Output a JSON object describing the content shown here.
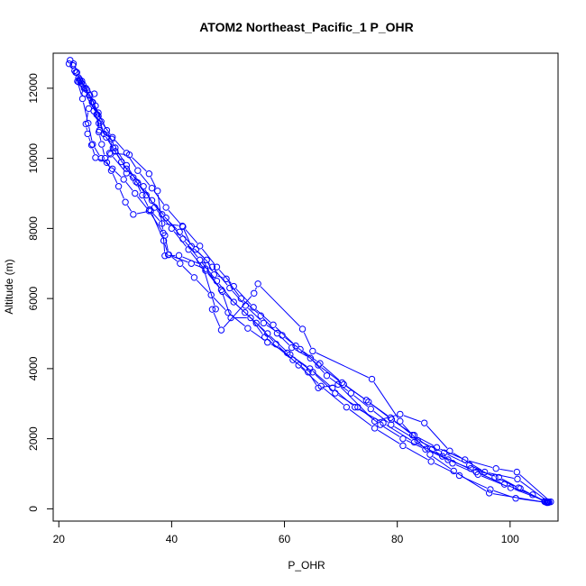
{
  "chart_data": {
    "type": "scatter",
    "title": "ATOM2 Northeast_Pacific_1 P_OHR",
    "xlabel": "P_OHR",
    "ylabel": "Altitude (m)",
    "xlim": [
      19,
      108.5
    ],
    "ylim": [
      -350,
      13000
    ],
    "xticks": [
      20,
      40,
      60,
      80,
      100
    ],
    "yticks": [
      0,
      2000,
      4000,
      6000,
      8000,
      10000,
      12000
    ],
    "grid": false,
    "legend": "none",
    "colors": {
      "series": "#0000ff",
      "frame": "#000000"
    },
    "series": [
      {
        "points": [
          [
            106.8,
            180
          ],
          [
            106.2,
            200
          ],
          [
            101.5,
            600
          ],
          [
            98,
            900
          ],
          [
            93,
            1150
          ],
          [
            89,
            1400
          ],
          [
            85,
            1700
          ],
          [
            81,
            2000
          ],
          [
            77,
            2400
          ],
          [
            73,
            2900
          ],
          [
            69,
            3300
          ],
          [
            65,
            3900
          ],
          [
            61,
            4400
          ],
          [
            57,
            5000
          ],
          [
            53,
            5600
          ],
          [
            49,
            6200
          ],
          [
            46,
            6800
          ],
          [
            43,
            7400
          ],
          [
            40,
            8000
          ],
          [
            37,
            8600
          ],
          [
            35,
            9200
          ],
          [
            32,
            9700
          ],
          [
            30,
            10200
          ],
          [
            28,
            10700
          ],
          [
            27,
            11200
          ],
          [
            26,
            11600
          ],
          [
            24.5,
            12000
          ],
          [
            23.5,
            12300
          ],
          [
            23,
            12450
          ],
          [
            22.5,
            12650
          ],
          [
            22,
            12800
          ]
        ]
      },
      {
        "points": [
          [
            21.8,
            12700
          ],
          [
            22.8,
            12500
          ],
          [
            24,
            12150
          ],
          [
            25.5,
            11800
          ],
          [
            27,
            11300
          ],
          [
            28.5,
            10800
          ],
          [
            30,
            10300
          ],
          [
            32,
            9800
          ],
          [
            34,
            9300
          ],
          [
            36.5,
            8800
          ],
          [
            39,
            8300
          ],
          [
            42,
            7700
          ],
          [
            45,
            7100
          ],
          [
            48,
            6500
          ],
          [
            51,
            5900
          ],
          [
            55,
            5300
          ],
          [
            58.5,
            4700
          ],
          [
            62.5,
            4100
          ],
          [
            66.5,
            3500
          ],
          [
            71,
            2900
          ],
          [
            76,
            2300
          ],
          [
            81,
            1800
          ],
          [
            86,
            1350
          ],
          [
            91,
            950
          ],
          [
            96.5,
            550
          ],
          [
            101,
            300
          ],
          [
            106.5,
            180
          ]
        ]
      },
      {
        "points": [
          [
            107.2,
            200
          ],
          [
            101.2,
            1050
          ],
          [
            97.5,
            1150
          ],
          [
            92,
            1400
          ],
          [
            87,
            1750
          ],
          [
            83,
            2100
          ],
          [
            79,
            2550
          ],
          [
            74.5,
            3100
          ],
          [
            70.5,
            3550
          ],
          [
            66,
            4100
          ],
          [
            62,
            4650
          ],
          [
            58,
            5250
          ],
          [
            54.5,
            5750
          ],
          [
            51,
            6350
          ],
          [
            48,
            6900
          ],
          [
            45,
            7500
          ],
          [
            42,
            8050
          ],
          [
            39,
            8600
          ],
          [
            36.5,
            9150
          ],
          [
            34,
            9650
          ],
          [
            32,
            10150
          ],
          [
            29.5,
            10600
          ],
          [
            27.5,
            11050
          ],
          [
            26.5,
            11500
          ],
          [
            25,
            11950
          ],
          [
            23.7,
            12250
          ]
        ]
      },
      {
        "points": [
          [
            23.3,
            12200
          ],
          [
            24.2,
            11700
          ],
          [
            25.2,
            11000
          ],
          [
            26,
            10400
          ],
          [
            27.5,
            10000
          ],
          [
            29.5,
            9700
          ],
          [
            31.5,
            9400
          ],
          [
            33.5,
            9000
          ],
          [
            36,
            8500
          ],
          [
            38.8,
            7800
          ],
          [
            39.5,
            7250
          ],
          [
            41.5,
            7000
          ],
          [
            44,
            6600
          ],
          [
            47,
            6100
          ],
          [
            50,
            5600
          ],
          [
            53.5,
            5150
          ],
          [
            57,
            4750
          ],
          [
            60.5,
            4450
          ],
          [
            64.5,
            4000
          ],
          [
            68.5,
            3450
          ],
          [
            72.5,
            2900
          ],
          [
            77.5,
            2450
          ],
          [
            83,
            1900
          ],
          [
            88,
            1500
          ],
          [
            94,
            1050
          ],
          [
            99,
            700
          ],
          [
            104,
            400
          ],
          [
            106.4,
            190
          ]
        ]
      },
      {
        "points": [
          [
            106.6,
            175
          ],
          [
            96.3,
            450
          ],
          [
            90,
            1080
          ],
          [
            85.8,
            1550
          ],
          [
            80.5,
            2500
          ],
          [
            75.5,
            3700
          ],
          [
            65,
            4500
          ],
          [
            63.2,
            5130
          ],
          [
            55.3,
            6420
          ],
          [
            54.6,
            6150
          ],
          [
            48.8,
            5100
          ],
          [
            47.2,
            5690
          ],
          [
            47.8,
            5700
          ],
          [
            45.5,
            6950
          ],
          [
            41.3,
            7230
          ],
          [
            38.8,
            7220
          ],
          [
            38.5,
            7870
          ],
          [
            37.5,
            9070
          ],
          [
            36,
            9560
          ],
          [
            32.5,
            10100
          ],
          [
            29,
            10150
          ],
          [
            28.5,
            9880
          ],
          [
            26.5,
            10020
          ],
          [
            25.8,
            10380
          ],
          [
            25.1,
            10700
          ],
          [
            24.8,
            10980
          ],
          [
            25.3,
            11420
          ],
          [
            26.3,
            11840
          ],
          [
            24.8,
            12000
          ]
        ]
      },
      {
        "points": [
          [
            106.9,
            190
          ],
          [
            101.3,
            850
          ],
          [
            95.5,
            1050
          ],
          [
            89.3,
            1650
          ],
          [
            84.8,
            2450
          ],
          [
            80.5,
            2700
          ],
          [
            76,
            2500
          ],
          [
            69.5,
            3550
          ],
          [
            66,
            3450
          ],
          [
            64.2,
            3900
          ],
          [
            61.5,
            4250
          ],
          [
            56.5,
            4900
          ],
          [
            54,
            5450
          ],
          [
            50.5,
            5450
          ],
          [
            48.8,
            6250
          ],
          [
            46,
            6850
          ],
          [
            43.5,
            7000
          ],
          [
            39.4,
            7250
          ],
          [
            38.6,
            7650
          ],
          [
            36.3,
            8500
          ],
          [
            33.2,
            8400
          ],
          [
            31.8,
            8750
          ],
          [
            30.6,
            9200
          ],
          [
            29.3,
            9650
          ],
          [
            28.2,
            10000
          ],
          [
            27.6,
            10400
          ],
          [
            27.1,
            10750
          ],
          [
            26.7,
            11250
          ],
          [
            25.9,
            11600
          ],
          [
            24.3,
            12100
          ],
          [
            23.8,
            12200
          ]
        ]
      },
      {
        "points": [
          [
            23.5,
            12180
          ],
          [
            24.6,
            11850
          ],
          [
            26.8,
            11250
          ],
          [
            27.2,
            10800
          ],
          [
            29.4,
            10550
          ],
          [
            29.2,
            10120
          ],
          [
            32,
            9580
          ],
          [
            33.7,
            9330
          ],
          [
            34.8,
            8950
          ],
          [
            36.1,
            8540
          ],
          [
            38.3,
            8140
          ],
          [
            41.9,
            8070
          ],
          [
            43.5,
            7490
          ],
          [
            46.2,
            7100
          ],
          [
            47.5,
            6680
          ],
          [
            49.7,
            6560
          ],
          [
            52.3,
            6000
          ],
          [
            55.8,
            5510
          ],
          [
            58.7,
            5010
          ],
          [
            61.3,
            4600
          ],
          [
            64.6,
            4300
          ],
          [
            67.5,
            3800
          ],
          [
            71.8,
            3300
          ],
          [
            75.3,
            2850
          ],
          [
            78.9,
            2400
          ],
          [
            83.6,
            1950
          ],
          [
            88.3,
            1600
          ],
          [
            92.8,
            1250
          ],
          [
            97.3,
            900
          ],
          [
            101.8,
            580
          ],
          [
            106.1,
            210
          ]
        ]
      },
      {
        "points": [
          [
            106.7,
            200
          ],
          [
            100.1,
            600
          ],
          [
            94.3,
            980
          ],
          [
            89.8,
            1300
          ],
          [
            86.2,
            1700
          ],
          [
            82.7,
            2100
          ],
          [
            78.8,
            2600
          ],
          [
            74.9,
            3050
          ],
          [
            70.2,
            3600
          ],
          [
            66.3,
            4150
          ],
          [
            62.8,
            4550
          ],
          [
            59.6,
            4950
          ],
          [
            56.3,
            5300
          ],
          [
            53.1,
            5800
          ],
          [
            50.3,
            6300
          ],
          [
            47.2,
            6900
          ],
          [
            44.3,
            7400
          ],
          [
            41.4,
            7900
          ],
          [
            38.3,
            8400
          ],
          [
            35.5,
            8950
          ],
          [
            33.2,
            9450
          ],
          [
            31.1,
            9900
          ],
          [
            29.6,
            10300
          ],
          [
            28.4,
            10600
          ],
          [
            27.1,
            11000
          ],
          [
            26.2,
            11350
          ],
          [
            25.4,
            11800
          ],
          [
            24.1,
            12200
          ],
          [
            23.2,
            12450
          ],
          [
            22.6,
            12700
          ]
        ]
      }
    ]
  }
}
